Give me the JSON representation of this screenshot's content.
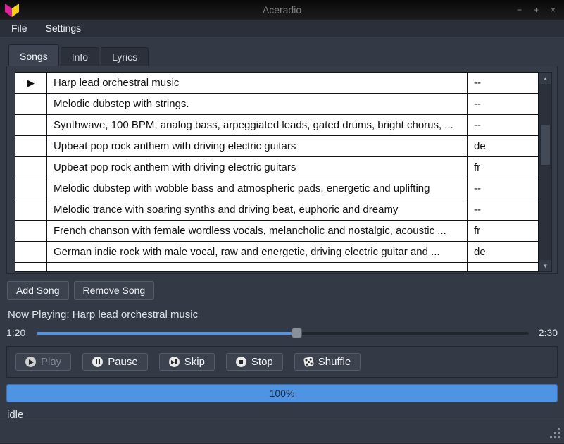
{
  "window": {
    "title": "Aceradio",
    "controls": {
      "minimize": "−",
      "maximize": "+",
      "close": "×"
    }
  },
  "menu": {
    "items": {
      "file": "File",
      "settings": "Settings"
    }
  },
  "tabs": {
    "songs": "Songs",
    "info": "Info",
    "lyrics": "Lyrics",
    "active": "Songs"
  },
  "songs": {
    "columns": [
      "playing-indicator",
      "title",
      "language"
    ],
    "rows": [
      {
        "indicator": "▶",
        "title": "Harp lead orchestral music",
        "lang": "--"
      },
      {
        "indicator": "",
        "title": "Melodic dubstep with strings.",
        "lang": "--"
      },
      {
        "indicator": "",
        "title": "Synthwave, 100 BPM, analog bass, arpeggiated leads, gated drums, bright chorus, ...",
        "lang": "--"
      },
      {
        "indicator": "",
        "title": "Upbeat pop rock anthem with driving electric guitars",
        "lang": "de"
      },
      {
        "indicator": "",
        "title": "Upbeat pop rock anthem with driving electric guitars",
        "lang": "fr"
      },
      {
        "indicator": "",
        "title": "Melodic dubstep with wobble bass and atmospheric pads, energetic and uplifting",
        "lang": "--"
      },
      {
        "indicator": "",
        "title": "Melodic trance with soaring synths and driving beat, euphoric and dreamy",
        "lang": "--"
      },
      {
        "indicator": "",
        "title": "French chanson with female wordless vocals, melancholic and nostalgic, acoustic ...",
        "lang": "fr"
      },
      {
        "indicator": "",
        "title": "German indie rock with male vocal, raw and energetic, driving electric guitar and ...",
        "lang": "de"
      }
    ],
    "scrollbar": {
      "up": "▲",
      "down": "▼"
    }
  },
  "actions": {
    "add": "Add Song",
    "remove": "Remove Song"
  },
  "player": {
    "now_playing": "Now Playing: Harp lead orchestral music",
    "elapsed": "1:20",
    "total": "2:30",
    "progress_pct": 53
  },
  "transport": {
    "play": {
      "label": "Play",
      "icon": "play-circle",
      "disabled": true
    },
    "pause": {
      "label": "Pause",
      "icon": "pause-circle"
    },
    "skip": {
      "label": "Skip",
      "icon": "skip-circle"
    },
    "stop": {
      "label": "Stop",
      "icon": "stop-circle"
    },
    "shuffle": {
      "label": "Shuffle",
      "icon": "dice"
    }
  },
  "progress_bar": {
    "value_pct": 100,
    "label": "100%"
  },
  "status": {
    "text": "idle"
  },
  "colors": {
    "accent_blue": "#5294e2",
    "progress_fill": "#4f93e3",
    "window_bg": "#333945",
    "titlebar_bg": "#121212",
    "table_bg": "#ffffff",
    "logo_pink": "#e0219e",
    "logo_yellow": "#f5cd13"
  }
}
